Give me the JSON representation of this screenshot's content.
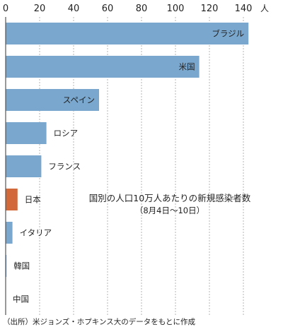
{
  "chart_data": {
    "type": "bar",
    "orientation": "horizontal",
    "categories": [
      "ブラジル",
      "米国",
      "スペイン",
      "ロシア",
      "フランス",
      "日本",
      "イタリア",
      "韓国",
      "中国"
    ],
    "values": [
      143,
      114,
      55,
      24,
      21,
      7,
      4,
      0.5,
      0
    ],
    "colors": [
      "#7aa7cd",
      "#7aa7cd",
      "#7aa7cd",
      "#7aa7cd",
      "#7aa7cd",
      "#d2693b",
      "#7aa7cd",
      "#7aa7cd",
      "#7aa7cd"
    ],
    "default_color": "#7aa7cd",
    "highlight_color": "#d2693b",
    "xlim": [
      0,
      150
    ],
    "xticks": [
      "0",
      "20",
      "40",
      "60",
      "80",
      "100",
      "120",
      "140"
    ],
    "xtick_values": [
      0,
      20,
      40,
      60,
      80,
      100,
      120,
      140
    ],
    "x_unit": "人",
    "grid": "vertical dashed",
    "annotation": "国別の人口10万人あたりの新規感染者数",
    "annotation_sub": "（8月4日～10日）",
    "source": "（出所）米ジョンズ・ホプキンス大のデータをもとに作成"
  }
}
